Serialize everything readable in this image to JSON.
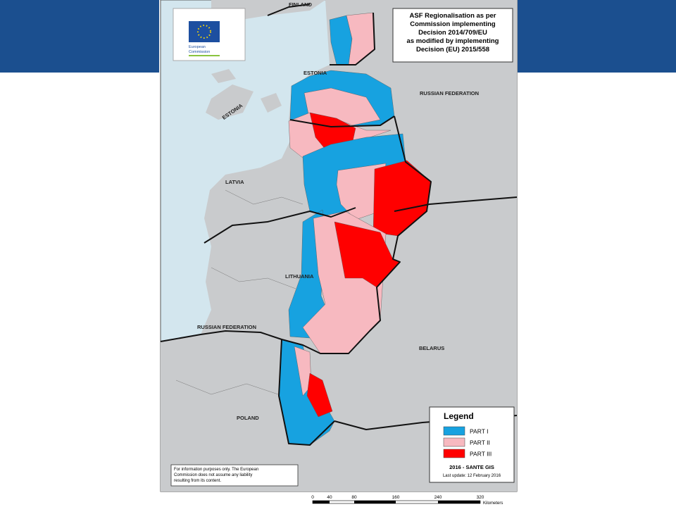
{
  "map": {
    "title_lines": [
      "ASF Regionalisation as per",
      "Commission implementing",
      "Decision 2014/709/EU",
      "as modified by implementing",
      "Decision (EU) 2015/558"
    ],
    "logo_text": [
      "European",
      "Commission"
    ],
    "country_labels": [
      "FINLAND",
      "ESTONIA",
      "ESTONIA",
      "RUSSIAN FEDERATION",
      "LATVIA",
      "LITHUANIA",
      "RUSSIAN FEDERATION",
      "BELARUS",
      "POLAND"
    ],
    "legend": {
      "title": "Legend",
      "items": [
        {
          "label": "PART I",
          "color": "#17a2e0"
        },
        {
          "label": "PART II",
          "color": "#f7b9c0"
        },
        {
          "label": "PART III",
          "color": "#ff0000"
        }
      ],
      "source": "2016 - SANTE GIS",
      "last_update": "Last update: 12 February 2016"
    },
    "disclaimer_lines": [
      "For information purposes only. The European",
      "Commission does not assume any liability",
      "resulting from its content."
    ],
    "scale_bar": {
      "ticks": [
        "0",
        "40",
        "80",
        "160",
        "240",
        "320"
      ],
      "unit": "Kilometers"
    }
  }
}
